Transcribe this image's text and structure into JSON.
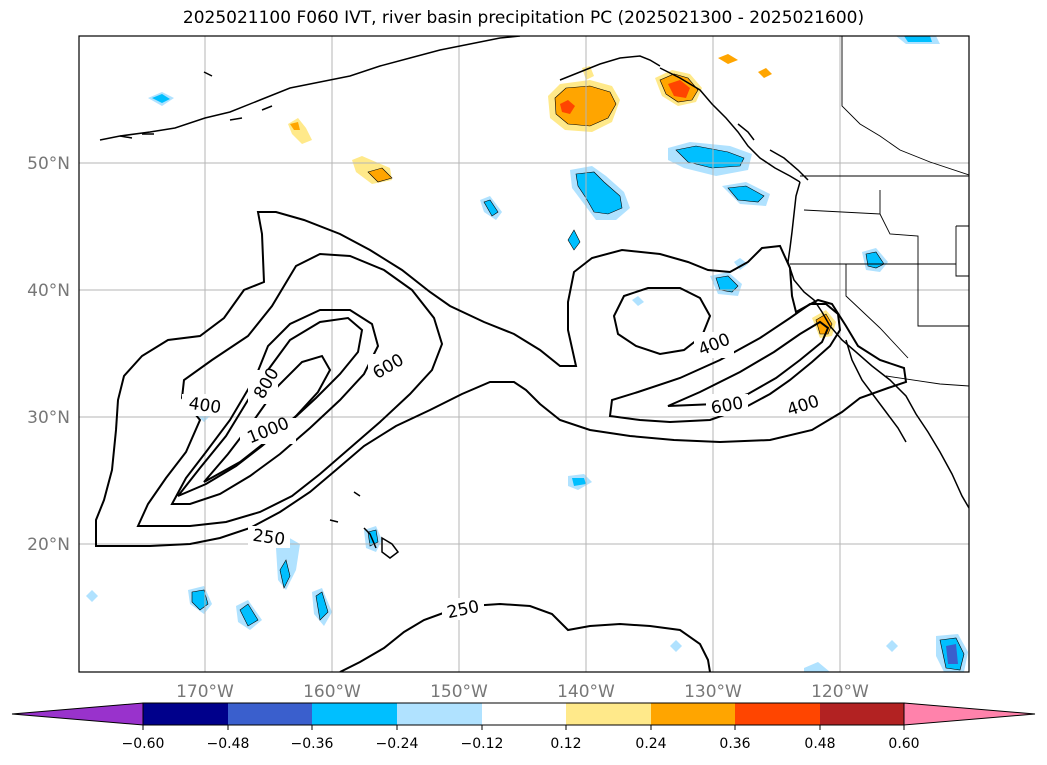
{
  "title": "2025021100 F060 IVT, river basin precipitation PC (2025021300 - 2025021600)",
  "lat_labels": [
    "50°N",
    "40°N",
    "30°N",
    "20°N"
  ],
  "lon_labels": [
    "170°W",
    "160°W",
    "150°W",
    "140°W",
    "130°W",
    "120°W"
  ],
  "colorbar": {
    "ticks": [
      "−0.60",
      "−0.48",
      "−0.36",
      "−0.24",
      "−0.12",
      "0.12",
      "0.24",
      "0.36",
      "0.48",
      "0.60"
    ],
    "colors": [
      "#9932cc",
      "#00008b",
      "#3a5fcd",
      "#00bfff",
      "#b0e2ff",
      "#ffffff",
      "#ffe98a",
      "#ffa500",
      "#ff4500",
      "#b22222",
      "#ff82ab"
    ]
  },
  "contour_labels": [
    "400",
    "800",
    "1000",
    "600",
    "400",
    "600",
    "400",
    "250",
    "250"
  ],
  "colors": {
    "frame": "#000000",
    "grid": "#b5b5b5",
    "contour": "#000000"
  }
}
